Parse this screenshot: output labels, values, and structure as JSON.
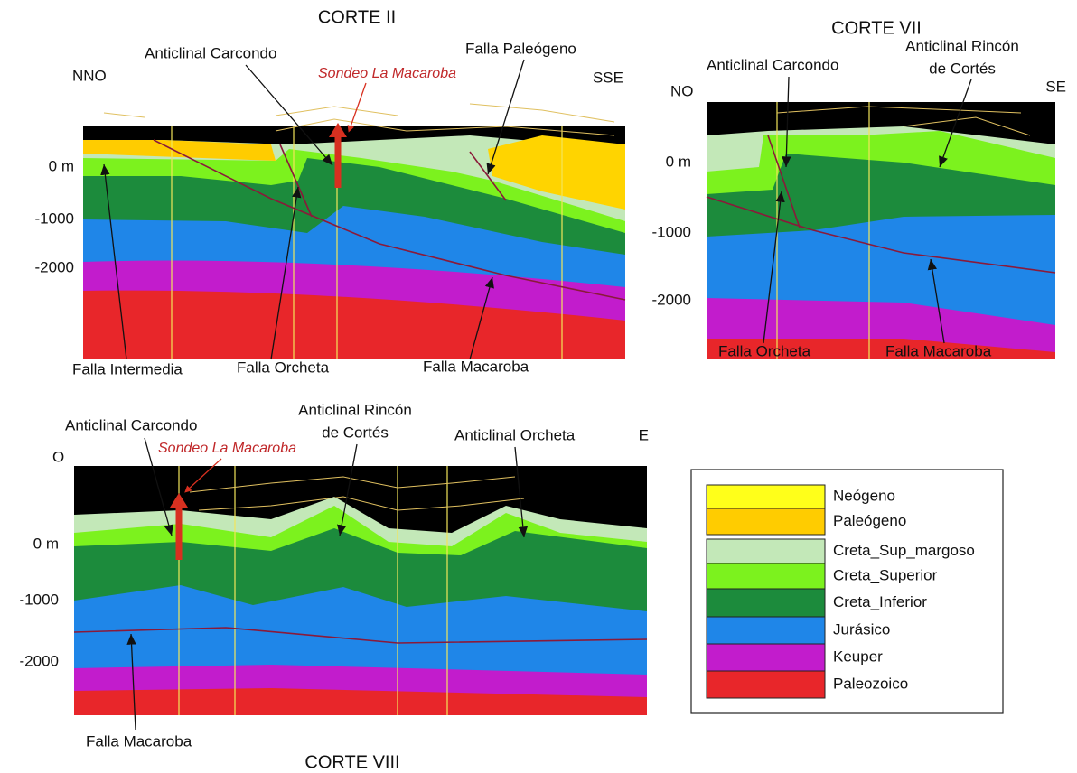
{
  "sections": [
    {
      "title": "CORTE II",
      "left": "NNO",
      "right": "SSE",
      "well": "Sondeo La Macaroba",
      "depth_labels": [
        "0 m",
        "-1000",
        "-2000"
      ],
      "annotations": [
        [
          "Anticlinal Carcondo"
        ],
        [
          "Falla Paleógeno"
        ],
        [
          "Falla Intermedia"
        ],
        [
          "Falla Orcheta"
        ],
        [
          "Falla Macaroba"
        ]
      ]
    },
    {
      "title": "CORTE VII",
      "left": "NO",
      "right": "SE",
      "depth_labels": [
        "0 m",
        "-1000",
        "-2000"
      ],
      "annotations": [
        [
          "Anticlinal Carcondo"
        ],
        [
          "Anticlinal Rincón",
          "de Cortés"
        ],
        [
          "Falla Orcheta"
        ],
        [
          "Falla Macaroba"
        ]
      ]
    },
    {
      "title": "CORTE VIII",
      "left": "O",
      "right": "E",
      "well": "Sondeo La Macaroba",
      "depth_labels": [
        "0 m",
        "-1000",
        "-2000"
      ],
      "annotations": [
        [
          "Anticlinal Carcondo"
        ],
        [
          "Anticlinal Rincón",
          "de Cortés"
        ],
        [
          "Anticlinal Orcheta"
        ],
        [
          "Falla Macaroba"
        ]
      ]
    }
  ],
  "legend": {
    "items": [
      {
        "label": "Neógeno",
        "color": "#ffff1a"
      },
      {
        "label": "Paleógeno",
        "color": "#ffcc00"
      },
      {
        "label": "Creta_Sup_margoso",
        "color": "#c3e8b8"
      },
      {
        "label": "Creta_Superior",
        "color": "#7cf21e"
      },
      {
        "label": "Creta_Inferior",
        "color": "#1c8b3c"
      },
      {
        "label": "Jurásico",
        "color": "#1f86e8"
      },
      {
        "label": "Keuper",
        "color": "#c21ccc"
      },
      {
        "label": "Paleozoico",
        "color": "#e8262a"
      }
    ]
  }
}
